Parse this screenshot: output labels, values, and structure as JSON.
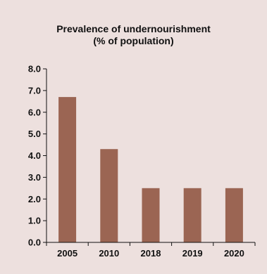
{
  "chart_data": {
    "type": "bar",
    "title": "Prevalence of undernourishment",
    "subtitle": "(% of population)",
    "categories": [
      "2005",
      "2010",
      "2018",
      "2019",
      "2020"
    ],
    "values": [
      6.7,
      4.3,
      2.5,
      2.5,
      2.5
    ],
    "ylim": [
      0,
      8
    ],
    "yticks": [
      "0.0",
      "1.0",
      "2.0",
      "3.0",
      "4.0",
      "5.0",
      "6.0",
      "7.0",
      "8.0"
    ],
    "xlabel": "",
    "ylabel": "",
    "grid": false,
    "legend": "none",
    "colors": {
      "background": "#ede0de",
      "bar": "#9b6553",
      "axis": "#111111"
    }
  }
}
